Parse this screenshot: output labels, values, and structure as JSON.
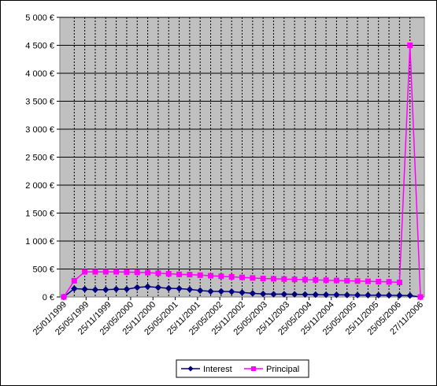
{
  "chart_data": {
    "type": "line",
    "title": "",
    "xlabel": "",
    "ylabel": "",
    "ylim": [
      0,
      5000
    ],
    "y_ticks": [
      "0 €",
      "500 €",
      "1 000 €",
      "1 500 €",
      "2 000 €",
      "2 500 €",
      "3 000 €",
      "3 500 €",
      "4 000 €",
      "4 500 €",
      "5 000 €"
    ],
    "x_tick_labels": [
      "25/01/1999",
      "25/05/1999",
      "25/11/1999",
      "25/05/2000",
      "25/11/2000",
      "25/05/2001",
      "25/11/2001",
      "25/05/2002",
      "25/11/2002",
      "25/05/2003",
      "25/11/2003",
      "25/05/2004",
      "25/11/2004",
      "25/05/2005",
      "25/11/2005",
      "25/05/2006",
      "27/11/2006"
    ],
    "grid": true,
    "plot_background": "#c0c0c0",
    "legend_position": "bottom",
    "series": [
      {
        "name": "Interest",
        "color": "#000080",
        "marker": "diamond",
        "values": [
          0,
          150,
          140,
          130,
          130,
          140,
          140,
          170,
          185,
          170,
          155,
          150,
          135,
          115,
          100,
          100,
          95,
          80,
          65,
          55,
          50,
          50,
          48,
          45,
          42,
          40,
          38,
          36,
          34,
          33,
          32,
          30,
          28,
          26,
          0
        ]
      },
      {
        "name": "Principal",
        "color": "#ff00ff",
        "marker": "square",
        "values": [
          0,
          290,
          450,
          450,
          450,
          450,
          445,
          440,
          435,
          425,
          415,
          405,
          400,
          390,
          380,
          370,
          360,
          350,
          340,
          330,
          325,
          320,
          315,
          310,
          305,
          300,
          295,
          290,
          285,
          280,
          275,
          270,
          260,
          4500,
          0
        ]
      }
    ]
  }
}
